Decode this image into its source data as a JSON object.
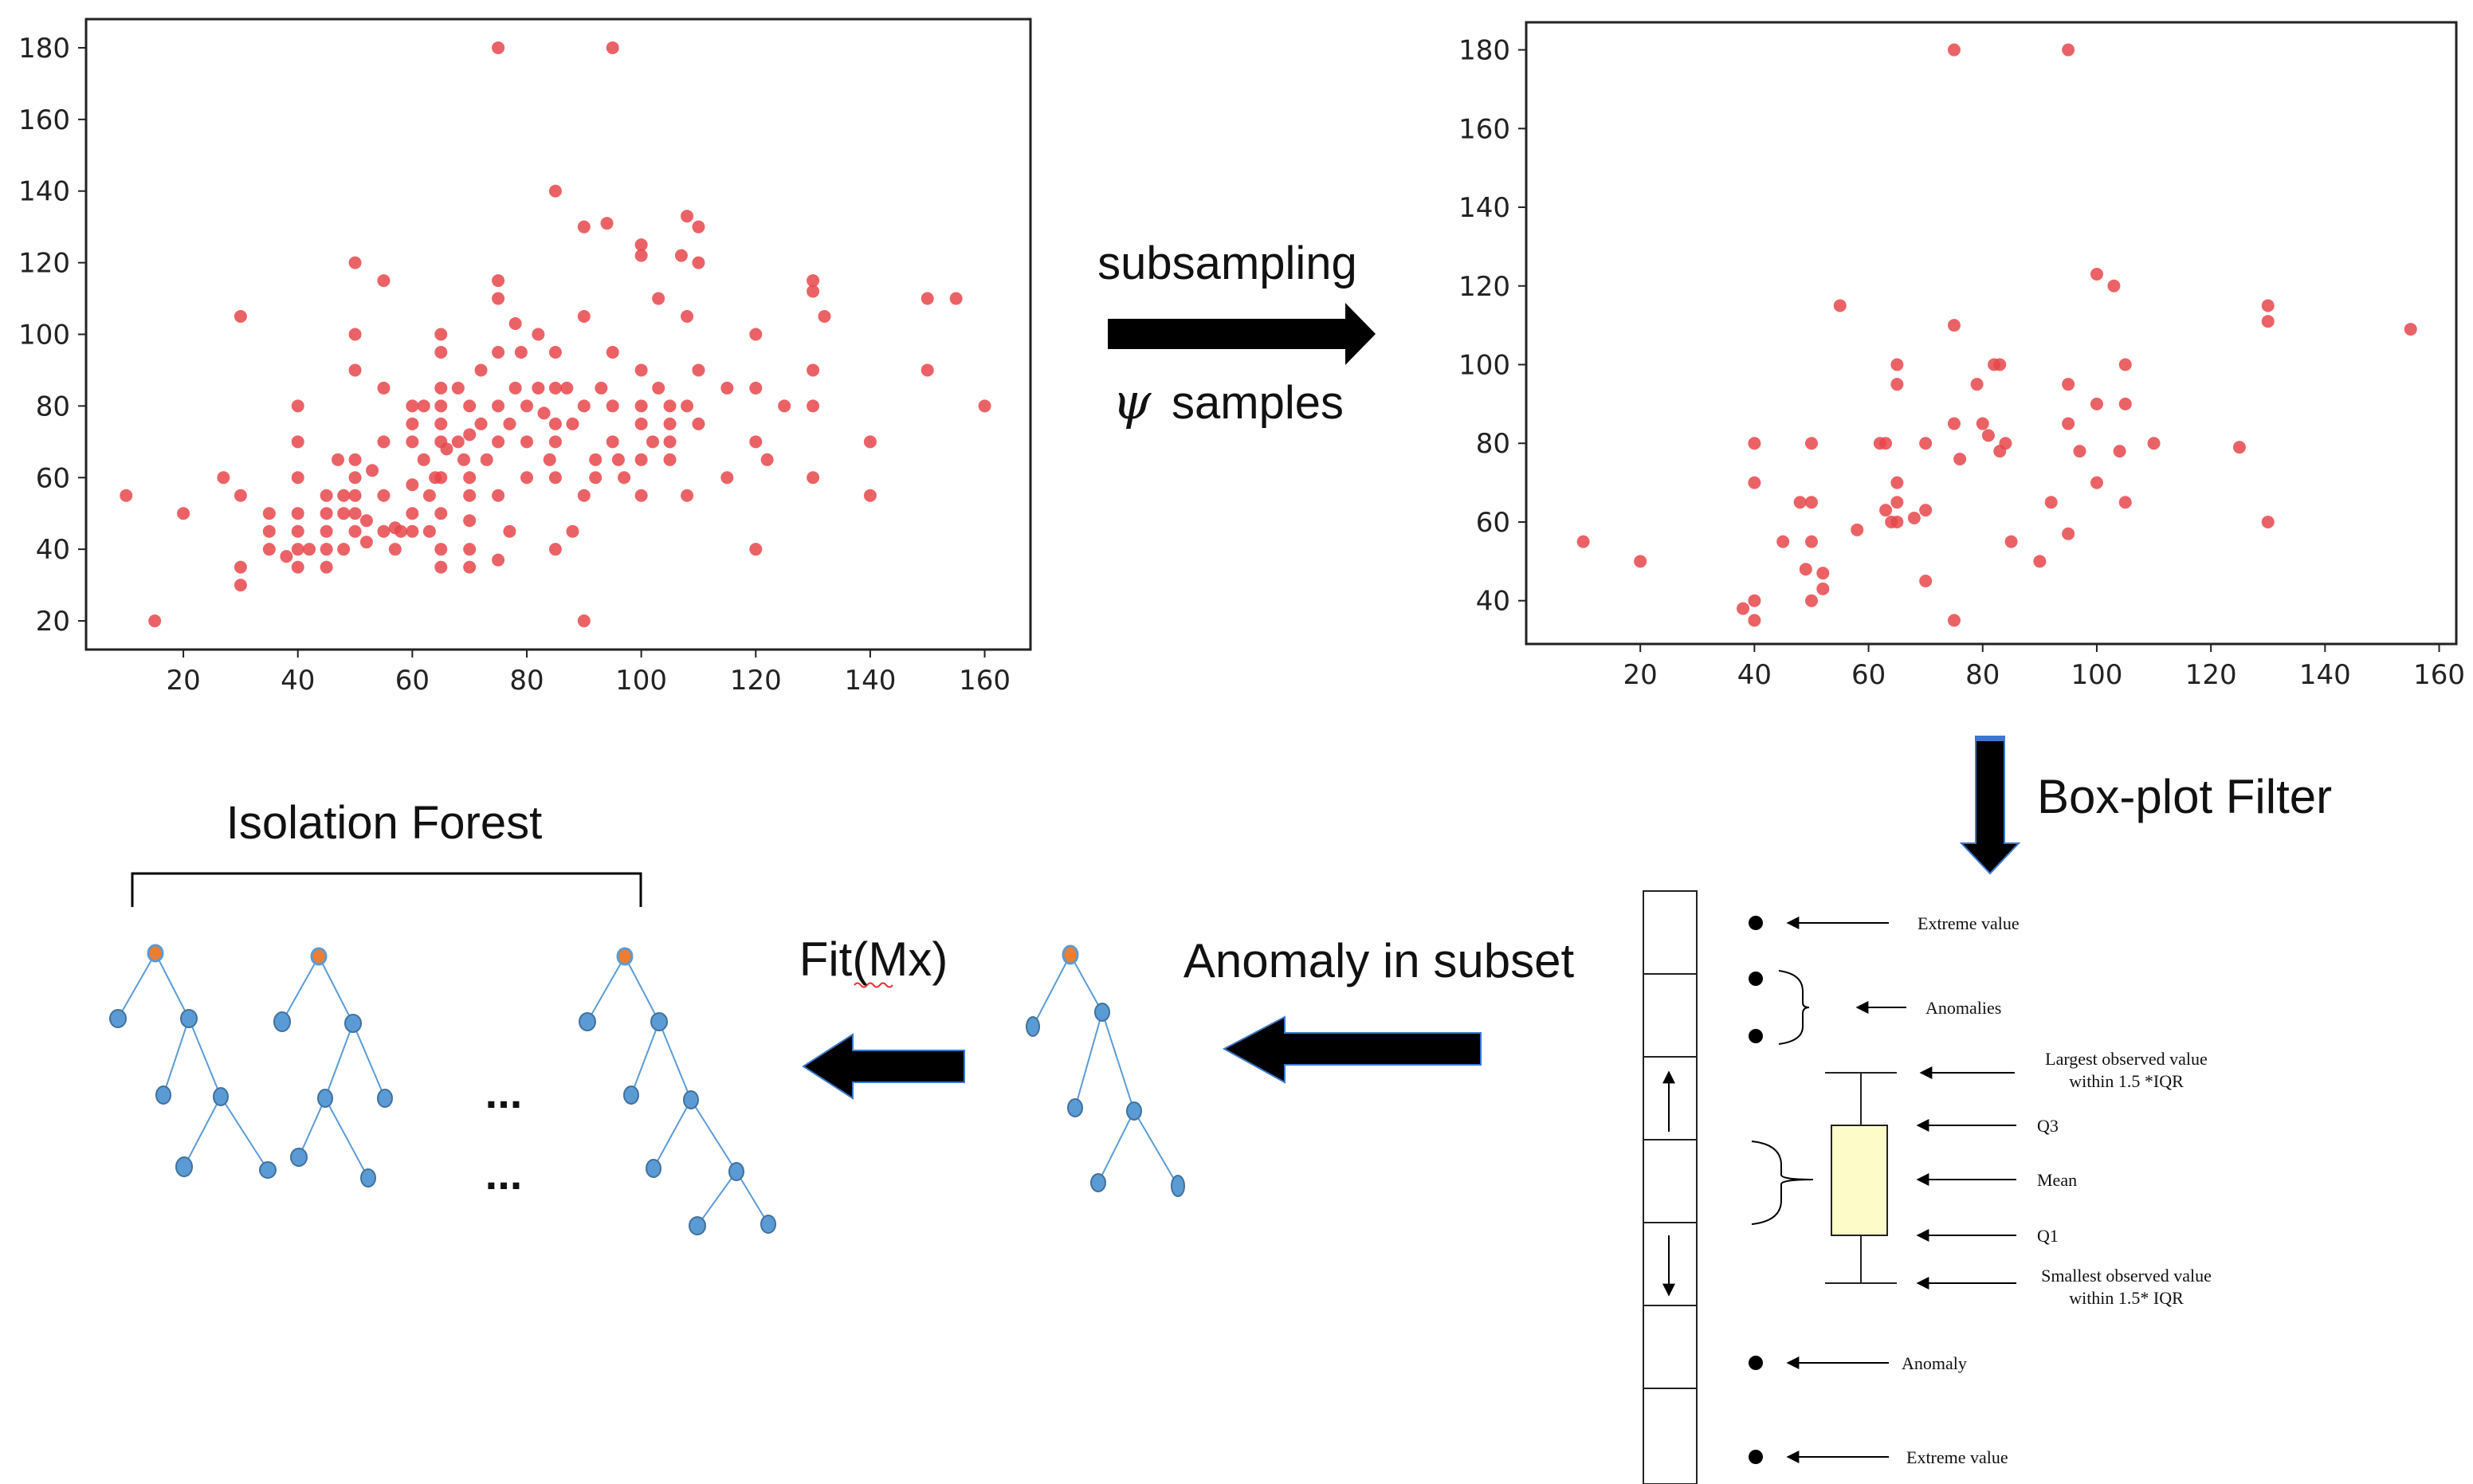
{
  "labels": {
    "subsampling": "subsampling",
    "psi": "ψ",
    "samples": "samples",
    "boxplot_filter": "Box-plot Filter",
    "anomaly_in_subset": "Anomaly in subset",
    "fit": "Fit(Mx)",
    "isolation_forest": "Isolation Forest",
    "ellipsis": "..."
  },
  "boxplot_legend": {
    "extreme_value_top": "Extreme value",
    "anomalies": "Anomalies",
    "largest_line1": "Largest observed value",
    "largest_line2": "within 1.5 *IQR",
    "q3": "Q3",
    "mean": "Mean",
    "q1": "Q1",
    "smallest_line1": "Smallest observed value",
    "smallest_line2": "within 1.5* IQR",
    "anomaly": "Anomaly",
    "extreme_value_bottom": "Extreme value"
  },
  "colors": {
    "point": "#e8474b",
    "node": "#5b9bd5",
    "root": "#ed7d31",
    "edge": "#5b9bd5",
    "box_fill": "#fdfcc8"
  },
  "chart_data": [
    {
      "type": "scatter",
      "title": "",
      "xlabel": "",
      "ylabel": "",
      "xlim": [
        3,
        168
      ],
      "ylim": [
        12,
        188
      ],
      "xticks": [
        20,
        40,
        60,
        80,
        100,
        120,
        140,
        160
      ],
      "yticks": [
        20,
        40,
        60,
        80,
        100,
        120,
        140,
        160,
        180
      ],
      "points": [
        [
          10,
          55
        ],
        [
          15,
          20
        ],
        [
          20,
          50
        ],
        [
          27,
          60
        ],
        [
          30,
          105
        ],
        [
          30,
          55
        ],
        [
          30,
          35
        ],
        [
          30,
          30
        ],
        [
          35,
          50
        ],
        [
          35,
          45
        ],
        [
          35,
          40
        ],
        [
          38,
          38
        ],
        [
          40,
          80
        ],
        [
          40,
          70
        ],
        [
          40,
          60
        ],
        [
          40,
          50
        ],
        [
          40,
          45
        ],
        [
          40,
          40
        ],
        [
          40,
          35
        ],
        [
          42,
          40
        ],
        [
          45,
          55
        ],
        [
          45,
          50
        ],
        [
          45,
          45
        ],
        [
          45,
          40
        ],
        [
          45,
          35
        ],
        [
          47,
          65
        ],
        [
          48,
          55
        ],
        [
          48,
          50
        ],
        [
          48,
          40
        ],
        [
          50,
          120
        ],
        [
          50,
          100
        ],
        [
          50,
          90
        ],
        [
          50,
          65
        ],
        [
          50,
          60
        ],
        [
          50,
          55
        ],
        [
          50,
          50
        ],
        [
          50,
          45
        ],
        [
          52,
          48
        ],
        [
          52,
          42
        ],
        [
          53,
          62
        ],
        [
          55,
          115
        ],
        [
          55,
          85
        ],
        [
          55,
          70
        ],
        [
          55,
          55
        ],
        [
          55,
          45
        ],
        [
          57,
          40
        ],
        [
          57,
          46
        ],
        [
          58,
          45
        ],
        [
          60,
          80
        ],
        [
          60,
          75
        ],
        [
          60,
          70
        ],
        [
          60,
          58
        ],
        [
          60,
          50
        ],
        [
          60,
          45
        ],
        [
          62,
          80
        ],
        [
          62,
          65
        ],
        [
          63,
          55
        ],
        [
          63,
          45
        ],
        [
          64,
          60
        ],
        [
          65,
          100
        ],
        [
          65,
          95
        ],
        [
          65,
          85
        ],
        [
          65,
          80
        ],
        [
          65,
          75
        ],
        [
          65,
          70
        ],
        [
          65,
          60
        ],
        [
          65,
          50
        ],
        [
          65,
          40
        ],
        [
          65,
          35
        ],
        [
          66,
          68
        ],
        [
          68,
          85
        ],
        [
          68,
          70
        ],
        [
          69,
          65
        ],
        [
          70,
          80
        ],
        [
          70,
          72
        ],
        [
          70,
          60
        ],
        [
          70,
          55
        ],
        [
          70,
          48
        ],
        [
          70,
          40
        ],
        [
          70,
          35
        ],
        [
          72,
          90
        ],
        [
          72,
          75
        ],
        [
          73,
          65
        ],
        [
          75,
          115
        ],
        [
          75,
          110
        ],
        [
          75,
          95
        ],
        [
          75,
          80
        ],
        [
          75,
          70
        ],
        [
          75,
          55
        ],
        [
          75,
          37
        ],
        [
          77,
          75
        ],
        [
          77,
          45
        ],
        [
          78,
          103
        ],
        [
          78,
          85
        ],
        [
          79,
          95
        ],
        [
          80,
          80
        ],
        [
          80,
          70
        ],
        [
          80,
          60
        ],
        [
          82,
          100
        ],
        [
          82,
          85
        ],
        [
          83,
          78
        ],
        [
          84,
          65
        ],
        [
          85,
          140
        ],
        [
          85,
          95
        ],
        [
          85,
          85
        ],
        [
          85,
          75
        ],
        [
          85,
          70
        ],
        [
          85,
          60
        ],
        [
          85,
          40
        ],
        [
          87,
          85
        ],
        [
          88,
          75
        ],
        [
          88,
          45
        ],
        [
          90,
          130
        ],
        [
          90,
          105
        ],
        [
          90,
          80
        ],
        [
          90,
          55
        ],
        [
          90,
          20
        ],
        [
          92,
          65
        ],
        [
          92,
          60
        ],
        [
          93,
          85
        ],
        [
          94,
          131
        ],
        [
          95,
          95
        ],
        [
          95,
          80
        ],
        [
          95,
          70
        ],
        [
          96,
          65
        ],
        [
          97,
          60
        ],
        [
          100,
          125
        ],
        [
          100,
          122
        ],
        [
          100,
          90
        ],
        [
          100,
          80
        ],
        [
          100,
          75
        ],
        [
          100,
          65
        ],
        [
          100,
          55
        ],
        [
          102,
          70
        ],
        [
          103,
          110
        ],
        [
          103,
          85
        ],
        [
          105,
          80
        ],
        [
          105,
          75
        ],
        [
          105,
          70
        ],
        [
          105,
          65
        ],
        [
          107,
          122
        ],
        [
          108,
          133
        ],
        [
          108,
          105
        ],
        [
          108,
          80
        ],
        [
          108,
          55
        ],
        [
          110,
          130
        ],
        [
          110,
          120
        ],
        [
          110,
          90
        ],
        [
          110,
          75
        ],
        [
          115,
          85
        ],
        [
          115,
          60
        ],
        [
          120,
          100
        ],
        [
          120,
          85
        ],
        [
          120,
          70
        ],
        [
          120,
          40
        ],
        [
          122,
          65
        ],
        [
          125,
          80
        ],
        [
          130,
          115
        ],
        [
          130,
          112
        ],
        [
          130,
          90
        ],
        [
          130,
          80
        ],
        [
          130,
          60
        ],
        [
          132,
          105
        ],
        [
          140,
          70
        ],
        [
          140,
          55
        ],
        [
          150,
          110
        ],
        [
          150,
          90
        ],
        [
          155,
          110
        ],
        [
          160,
          80
        ],
        [
          75,
          180
        ],
        [
          95,
          180
        ]
      ]
    },
    {
      "type": "scatter",
      "title": "",
      "xlabel": "",
      "ylabel": "",
      "xlim": [
        0,
        163
      ],
      "ylim": [
        29,
        187
      ],
      "xticks": [
        20,
        40,
        60,
        80,
        100,
        120,
        140,
        160
      ],
      "yticks": [
        40,
        60,
        80,
        100,
        120,
        140,
        160,
        180
      ],
      "points": [
        [
          10,
          55
        ],
        [
          20,
          50
        ],
        [
          38,
          38
        ],
        [
          40,
          80
        ],
        [
          40,
          70
        ],
        [
          40,
          40
        ],
        [
          40,
          35
        ],
        [
          45,
          55
        ],
        [
          48,
          65
        ],
        [
          49,
          48
        ],
        [
          50,
          80
        ],
        [
          50,
          65
        ],
        [
          50,
          55
        ],
        [
          50,
          40
        ],
        [
          52,
          47
        ],
        [
          52,
          43
        ],
        [
          55,
          115
        ],
        [
          58,
          58
        ],
        [
          62,
          80
        ],
        [
          63,
          80
        ],
        [
          63,
          63
        ],
        [
          64,
          60
        ],
        [
          65,
          100
        ],
        [
          65,
          95
        ],
        [
          65,
          70
        ],
        [
          65,
          65
        ],
        [
          65,
          60
        ],
        [
          68,
          61
        ],
        [
          70,
          80
        ],
        [
          70,
          63
        ],
        [
          70,
          45
        ],
        [
          75,
          110
        ],
        [
          75,
          85
        ],
        [
          75,
          35
        ],
        [
          76,
          76
        ],
        [
          79,
          95
        ],
        [
          80,
          85
        ],
        [
          81,
          82
        ],
        [
          82,
          100
        ],
        [
          83,
          78
        ],
        [
          83,
          100
        ],
        [
          84,
          80
        ],
        [
          85,
          55
        ],
        [
          90,
          50
        ],
        [
          92,
          65
        ],
        [
          95,
          95
        ],
        [
          95,
          85
        ],
        [
          95,
          57
        ],
        [
          97,
          78
        ],
        [
          100,
          123
        ],
        [
          100,
          90
        ],
        [
          100,
          70
        ],
        [
          103,
          120
        ],
        [
          104,
          78
        ],
        [
          105,
          100
        ],
        [
          105,
          90
        ],
        [
          105,
          65
        ],
        [
          110,
          80
        ],
        [
          125,
          79
        ],
        [
          130,
          115
        ],
        [
          130,
          111
        ],
        [
          130,
          60
        ],
        [
          155,
          109
        ],
        [
          75,
          180
        ],
        [
          95,
          180
        ]
      ]
    }
  ]
}
